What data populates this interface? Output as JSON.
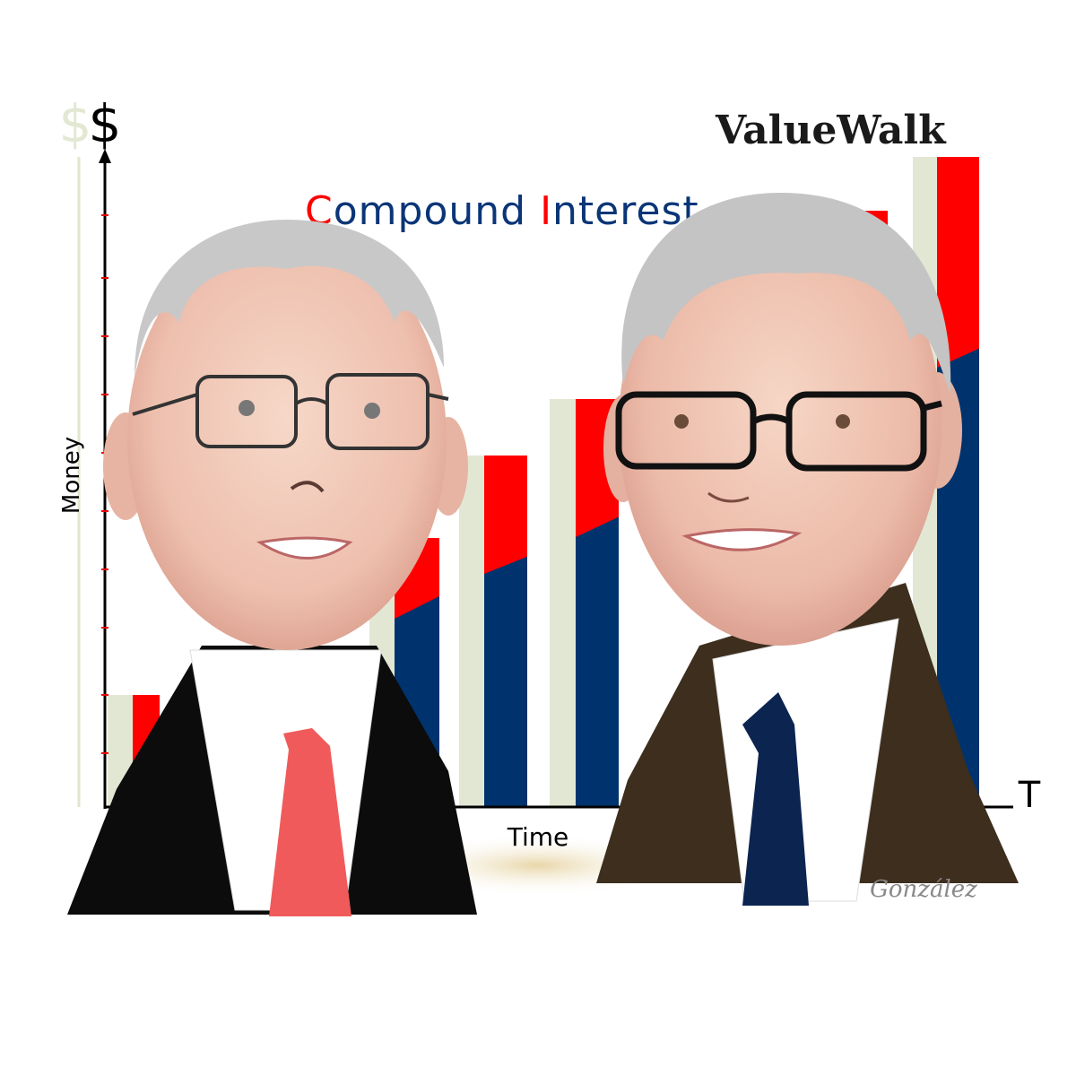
{
  "logo": "ValueWalk",
  "title": "Compound Interest",
  "axis": {
    "y_symbol": "$",
    "y_symbol_shadow": "$",
    "y_label": "Money",
    "x_label": "Time",
    "x_symbol": "T"
  },
  "signature": "González"
}
